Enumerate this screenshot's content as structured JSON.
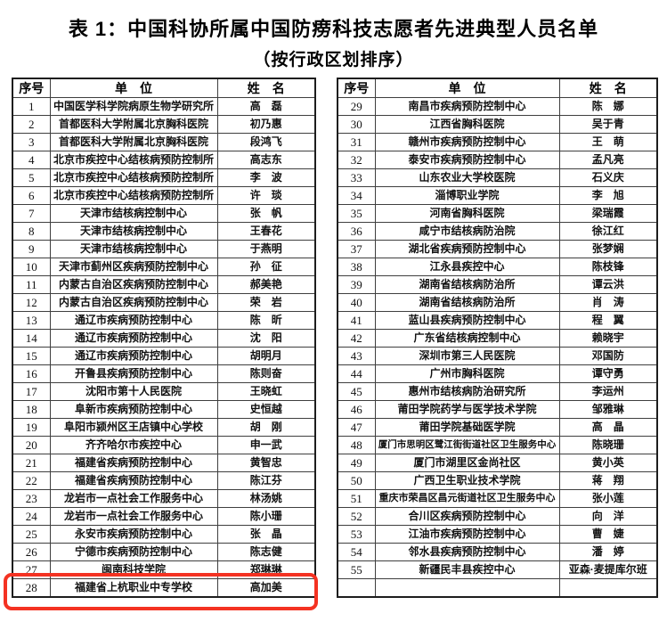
{
  "page": {
    "title": "表 1：中国科协所属中国防痨科技志愿者先进典型人员名单",
    "subtitle": "（按行政区划排序）"
  },
  "table_headers": {
    "index": "序号",
    "unit": "单　位",
    "name": "姓　名"
  },
  "highlight": {
    "color": "#f43222",
    "highlighted_row_no": "27"
  },
  "left_table": {
    "rows": [
      {
        "no": "1",
        "unit": "中国医学科学院病原生物学研究所",
        "name": "高　磊"
      },
      {
        "no": "2",
        "unit": "首都医科大学附属北京胸科医院",
        "name": "初乃惠"
      },
      {
        "no": "3",
        "unit": "首都医科大学附属北京胸科医院",
        "name": "段鸿飞"
      },
      {
        "no": "4",
        "unit": "北京市疾控中心结核病预防控制所",
        "name": "高志东"
      },
      {
        "no": "5",
        "unit": "北京市疾控中心结核病预防控制所",
        "name": "李　波"
      },
      {
        "no": "6",
        "unit": "北京市疾控中心结核病预防控制所",
        "name": "许　琰"
      },
      {
        "no": "7",
        "unit": "天津市结核病控制中心",
        "name": "张　帆"
      },
      {
        "no": "8",
        "unit": "天津市结核病控制中心",
        "name": "王春花"
      },
      {
        "no": "9",
        "unit": "天津市结核病控制中心",
        "name": "于燕明"
      },
      {
        "no": "10",
        "unit": "天津市蓟州区疾病预防控制中心",
        "name": "孙　征"
      },
      {
        "no": "11",
        "unit": "内蒙古自治区疾病预防控制中心",
        "name": "郝美艳"
      },
      {
        "no": "12",
        "unit": "内蒙古自治区疾病预防控制中心",
        "name": "荣　岩"
      },
      {
        "no": "13",
        "unit": "通辽市疾病预防控制中心",
        "name": "陈　昕"
      },
      {
        "no": "14",
        "unit": "通辽市疾病预防控制中心",
        "name": "沈　阳"
      },
      {
        "no": "15",
        "unit": "通辽市疾病预防控制中心",
        "name": "胡明月"
      },
      {
        "no": "16",
        "unit": "开鲁县疾病预防控制中心",
        "name": "陈则奋"
      },
      {
        "no": "17",
        "unit": "沈阳市第十人民医院",
        "name": "王晓虹"
      },
      {
        "no": "18",
        "unit": "阜新市疾病预防控制中心",
        "name": "史恒越"
      },
      {
        "no": "19",
        "unit": "阜阳市颍州区王店镇中心学校",
        "name": "胡　刚"
      },
      {
        "no": "20",
        "unit": "齐齐哈尔市疾控中心",
        "name": "申一武"
      },
      {
        "no": "21",
        "unit": "福建省疾病预防控制中心",
        "name": "黄智忠"
      },
      {
        "no": "22",
        "unit": "福建省疾病预防控制中心",
        "name": "陈江芬"
      },
      {
        "no": "23",
        "unit": "龙岩市一点社会工作服务中心",
        "name": "林汤姚"
      },
      {
        "no": "24",
        "unit": "龙岩市一点社会工作服务中心",
        "name": "陈小珊"
      },
      {
        "no": "25",
        "unit": "永安市疾病预防控制中心",
        "name": "张　晶"
      },
      {
        "no": "26",
        "unit": "宁德市疾病预防控制中心",
        "name": "陈志健"
      },
      {
        "no": "27",
        "unit": "闽南科技学院",
        "name": "郑琳琳"
      },
      {
        "no": "28",
        "unit": "福建省上杭职业中专学校",
        "name": "高加美"
      }
    ]
  },
  "right_table": {
    "rows": [
      {
        "no": "29",
        "unit": "南昌市疾病预防控制中心",
        "name": "陈　娜"
      },
      {
        "no": "30",
        "unit": "江西省胸科医院",
        "name": "吴于青"
      },
      {
        "no": "31",
        "unit": "赣州市疾病预防控制中心",
        "name": "王　萌"
      },
      {
        "no": "32",
        "unit": "泰安市疾病预防控制中心",
        "name": "孟凡亮"
      },
      {
        "no": "33",
        "unit": "山东农业大学校医院",
        "name": "石义庆"
      },
      {
        "no": "34",
        "unit": "淄博职业学院",
        "name": "李　旭"
      },
      {
        "no": "35",
        "unit": "河南省胸科医院",
        "name": "梁瑞霞"
      },
      {
        "no": "36",
        "unit": "咸宁市结核病防治院",
        "name": "徐江红"
      },
      {
        "no": "37",
        "unit": "湖北省疾病预防控制中心",
        "name": "张梦娴"
      },
      {
        "no": "38",
        "unit": "江永县疾控中心",
        "name": "陈枝锋"
      },
      {
        "no": "39",
        "unit": "湖南省结核病防治所",
        "name": "谭云洪"
      },
      {
        "no": "40",
        "unit": "湖南省结核病防治所",
        "name": "肖　涛"
      },
      {
        "no": "41",
        "unit": "蓝山县疾病预防控制中心",
        "name": "程　翼"
      },
      {
        "no": "42",
        "unit": "广东省结核病控制中心",
        "name": "赖晓宇"
      },
      {
        "no": "43",
        "unit": "深圳市第三人民医院",
        "name": "邓国防"
      },
      {
        "no": "44",
        "unit": "广州市胸科医院",
        "name": "谭守勇"
      },
      {
        "no": "45",
        "unit": "惠州市结核病防治研究所",
        "name": "李运州"
      },
      {
        "no": "46",
        "unit": "莆田学院药学与医学技术学院",
        "name": "邹雅琳"
      },
      {
        "no": "47",
        "unit": "莆田学院基础医学院",
        "name": "高　晶"
      },
      {
        "no": "48",
        "unit": "厦门市思明区鹭江街街道社区卫生服务中心",
        "name": "陈晓珊"
      },
      {
        "no": "49",
        "unit": "厦门市湖里区金尚社区",
        "name": "黄小英"
      },
      {
        "no": "50",
        "unit": "广西卫生职业技术学院",
        "name": "蒋　翔"
      },
      {
        "no": "51",
        "unit": "重庆市荣昌区昌元街道社区卫生服务中心",
        "name": "张小莲"
      },
      {
        "no": "52",
        "unit": "合川区疾病预防控制中心",
        "name": "向　洋"
      },
      {
        "no": "53",
        "unit": "江油市疾病预防控制中心",
        "name": "曹　婕"
      },
      {
        "no": "54",
        "unit": "邻水县疾病预防控制中心",
        "name": "潘　婷"
      },
      {
        "no": "55",
        "unit": "新疆民丰县疾控中心",
        "name": "亚森·麦提库尔班"
      },
      {
        "no": "",
        "unit": "",
        "name": ""
      }
    ]
  }
}
